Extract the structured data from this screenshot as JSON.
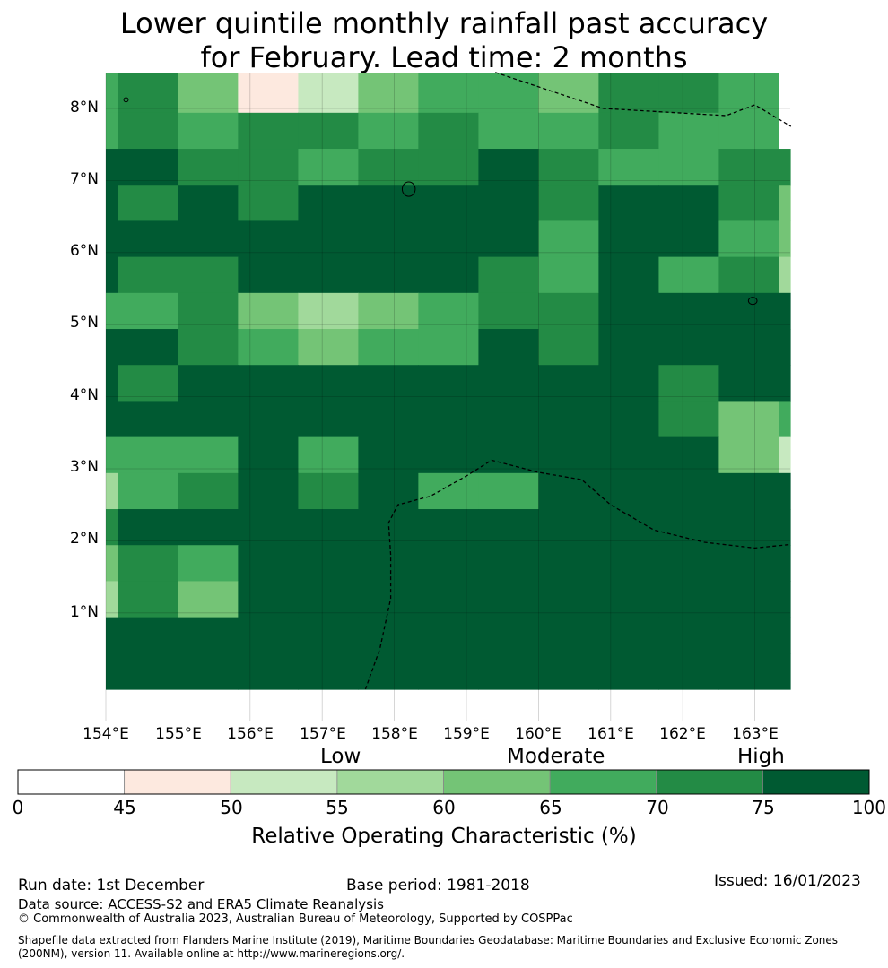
{
  "title_line1": "Lower quintile monthly rainfall past accuracy",
  "title_line2": "for February. Lead time: 2 months",
  "lat_labels": [
    "8°N",
    "7°N",
    "6°N",
    "5°N",
    "4°N",
    "3°N",
    "2°N",
    "1°N"
  ],
  "lon_labels": [
    "154°E",
    "155°E",
    "156°E",
    "157°E",
    "158°E",
    "159°E",
    "160°E",
    "161°E",
    "162°E",
    "163°E"
  ],
  "levels": {
    "low": "Low",
    "moderate": "Moderate",
    "high": "High"
  },
  "colorbar": {
    "ticks": [
      "0",
      "45",
      "50",
      "55",
      "60",
      "65",
      "70",
      "75",
      "100"
    ],
    "colors": [
      "#ffffff",
      "#fde9df",
      "#c7e9c0",
      "#a1d99b",
      "#74c476",
      "#41ab5d",
      "#238b45",
      "#005a32"
    ],
    "title": "Relative Operating Characteristic (%)"
  },
  "footer": {
    "run_date": "Run date: 1st December",
    "base_period": "Base period: 1981-2018",
    "issued": "Issued: 16/01/2023",
    "data_source": "Data source: ACCESS-S2 and ERA5 Climate Reanalysis",
    "copyright": "© Commonwealth of Australia 2023, Australian Bureau of Meteorology, Supported by COSPPac",
    "shapefile_line1": "Shapefile data extracted from Flanders Marine Institute (2019), Maritime Boundaries Geodatabase: Maritime Boundaries and Exclusive Economic Zones",
    "shapefile_line2": "(200NM), version 11. Available online at http://www.marineregions.org/."
  },
  "grid": {
    "row_tops_deg_N": [
      8.5,
      7.94,
      7.44,
      6.94,
      6.44,
      5.94,
      5.44,
      4.94,
      4.44,
      3.94,
      3.44,
      2.94,
      2.44,
      1.94,
      1.44,
      0.94,
      0.44,
      -0.06
    ],
    "cols": [
      {
        "lon_start": 154.0,
        "lon_end": 154.167
      },
      {
        "lon_start": 154.167,
        "lon_end": 155.0
      },
      {
        "lon_start": 155.0,
        "lon_end": 155.833
      },
      {
        "lon_start": 155.833,
        "lon_end": 156.667
      },
      {
        "lon_start": 156.667,
        "lon_end": 157.5
      },
      {
        "lon_start": 157.5,
        "lon_end": 158.333
      },
      {
        "lon_start": 158.333,
        "lon_end": 159.167
      },
      {
        "lon_start": 159.167,
        "lon_end": 160.0
      },
      {
        "lon_start": 160.0,
        "lon_end": 160.833
      },
      {
        "lon_start": 160.833,
        "lon_end": 161.667
      },
      {
        "lon_start": 161.667,
        "lon_end": 162.5
      },
      {
        "lon_start": 162.5,
        "lon_end": 163.333
      },
      {
        "lon_start": 163.333,
        "lon_end": 163.5
      }
    ],
    "class_index_rows": [
      [
        5,
        6,
        4,
        1,
        2,
        4,
        5,
        5,
        4,
        6,
        6,
        5,
        0
      ],
      [
        5,
        6,
        5,
        6,
        6,
        5,
        6,
        5,
        5,
        6,
        5,
        5,
        0
      ],
      [
        7,
        7,
        6,
        6,
        5,
        6,
        6,
        7,
        6,
        5,
        5,
        6,
        6
      ],
      [
        7,
        6,
        7,
        6,
        7,
        7,
        7,
        7,
        6,
        7,
        7,
        6,
        4
      ],
      [
        7,
        7,
        7,
        7,
        7,
        7,
        7,
        7,
        5,
        7,
        7,
        5,
        4
      ],
      [
        7,
        6,
        6,
        7,
        7,
        7,
        7,
        6,
        5,
        7,
        5,
        6,
        3
      ],
      [
        5,
        5,
        6,
        4,
        3,
        4,
        5,
        6,
        6,
        7,
        7,
        7,
        7
      ],
      [
        7,
        7,
        6,
        5,
        4,
        5,
        5,
        7,
        6,
        7,
        7,
        7,
        7
      ],
      [
        7,
        6,
        7,
        7,
        7,
        7,
        7,
        7,
        7,
        7,
        6,
        7,
        7
      ],
      [
        7,
        7,
        7,
        7,
        7,
        7,
        7,
        7,
        7,
        7,
        6,
        4,
        5
      ],
      [
        5,
        5,
        5,
        7,
        5,
        7,
        7,
        7,
        7,
        7,
        7,
        4,
        2
      ],
      [
        3,
        5,
        6,
        7,
        6,
        7,
        5,
        5,
        7,
        7,
        7,
        7,
        7
      ],
      [
        6,
        7,
        7,
        7,
        7,
        7,
        7,
        7,
        7,
        7,
        7,
        7,
        7
      ],
      [
        4,
        6,
        5,
        7,
        7,
        7,
        7,
        7,
        7,
        7,
        7,
        7,
        7
      ],
      [
        3,
        6,
        4,
        7,
        7,
        7,
        7,
        7,
        7,
        7,
        7,
        7,
        7
      ],
      [
        7,
        7,
        7,
        7,
        7,
        7,
        7,
        7,
        7,
        7,
        7,
        7,
        7
      ],
      [
        7,
        7,
        7,
        7,
        7,
        7,
        7,
        7,
        7,
        7,
        7,
        7,
        7
      ]
    ]
  },
  "eez_boundaries_lonlat": [
    [
      [
        159.4,
        8.5
      ],
      [
        160.9,
        8.0
      ],
      [
        162.6,
        7.9
      ],
      [
        163.0,
        8.05
      ],
      [
        163.5,
        7.75
      ]
    ],
    [
      [
        157.6,
        -0.06
      ],
      [
        157.8,
        0.5
      ],
      [
        157.95,
        1.2
      ],
      [
        157.95,
        1.8
      ],
      [
        157.92,
        2.25
      ],
      [
        158.05,
        2.5
      ],
      [
        158.5,
        2.62
      ],
      [
        159.0,
        2.9
      ],
      [
        159.35,
        3.12
      ],
      [
        160.0,
        2.95
      ],
      [
        160.6,
        2.85
      ],
      [
        161.0,
        2.5
      ],
      [
        161.6,
        2.15
      ],
      [
        162.3,
        1.98
      ],
      [
        163.0,
        1.9
      ],
      [
        163.5,
        1.95
      ]
    ]
  ],
  "islands_lonlat": [
    {
      "lon": 158.2,
      "lat": 6.88,
      "rx": 0.09,
      "ry": 0.1
    },
    {
      "lon": 162.97,
      "lat": 5.33,
      "rx": 0.06,
      "ry": 0.05
    },
    {
      "lon": 154.28,
      "lat": 8.12,
      "rx": 0.03,
      "ry": 0.03
    }
  ]
}
